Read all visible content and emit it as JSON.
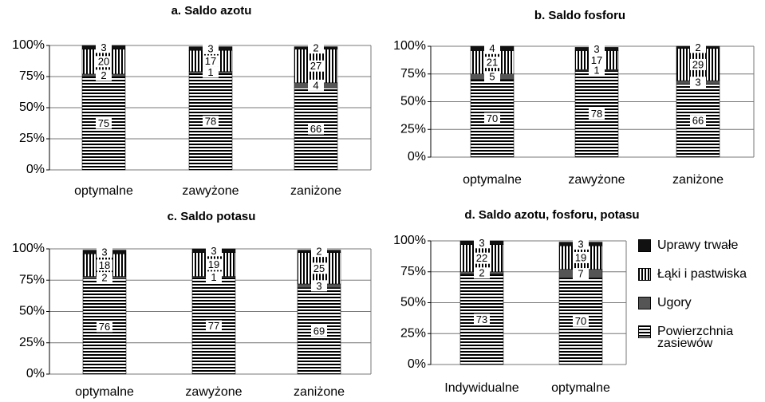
{
  "chart_data": [
    {
      "type": "bar",
      "stacked": true,
      "title": "a. Saldo azotu",
      "categories": [
        "optymalne",
        "zawyżone",
        "zaniżone"
      ],
      "series": [
        {
          "color": "#000000",
          "hatch": "horizontal",
          "values": [
            75,
            78,
            66
          ]
        },
        {
          "color": "#555555",
          "hatch": null,
          "values": [
            2,
            1,
            4
          ]
        },
        {
          "color": "#000000",
          "hatch": "vertical",
          "values": [
            20,
            17,
            27
          ]
        },
        {
          "color": "#111111",
          "hatch": null,
          "values": [
            3,
            3,
            2
          ]
        }
      ],
      "ylim": [
        0,
        100
      ],
      "yticks": [
        {
          "value": 0,
          "label": "0%"
        },
        {
          "value": 25,
          "label": "25%"
        },
        {
          "value": 50,
          "label": "50%"
        },
        {
          "value": 75,
          "label": "75%"
        },
        {
          "value": 100,
          "label": "100%"
        }
      ],
      "grid": true
    },
    {
      "type": "bar",
      "stacked": true,
      "title": "b. Saldo fosforu",
      "categories": [
        "optymalne",
        "zawyżone",
        "zaniżone"
      ],
      "series": [
        {
          "color": "#000000",
          "hatch": "horizontal",
          "values": [
            70,
            78,
            66
          ]
        },
        {
          "color": "#555555",
          "hatch": null,
          "values": [
            5,
            1,
            3
          ]
        },
        {
          "color": "#000000",
          "hatch": "vertical",
          "values": [
            21,
            17,
            29
          ]
        },
        {
          "color": "#111111",
          "hatch": null,
          "values": [
            4,
            3,
            2
          ]
        }
      ],
      "ylim": [
        0,
        100
      ],
      "yticks": [
        {
          "value": 0,
          "label": "0%"
        },
        {
          "value": 25,
          "label": "25%"
        },
        {
          "value": 50,
          "label": "50%"
        },
        {
          "value": 75,
          "label": "75%"
        },
        {
          "value": 100,
          "label": "100%"
        }
      ],
      "grid": true
    },
    {
      "type": "bar",
      "stacked": true,
      "title": "c. Saldo potasu",
      "categories": [
        "optymalne",
        "zawyżone",
        "zaniżone"
      ],
      "series": [
        {
          "color": "#000000",
          "hatch": "horizontal",
          "values": [
            76,
            77,
            69
          ]
        },
        {
          "color": "#555555",
          "hatch": null,
          "values": [
            2,
            1,
            3
          ]
        },
        {
          "color": "#000000",
          "hatch": "vertical",
          "values": [
            18,
            19,
            25
          ]
        },
        {
          "color": "#111111",
          "hatch": null,
          "values": [
            3,
            3,
            2
          ]
        }
      ],
      "ylim": [
        0,
        100
      ],
      "yticks": [
        {
          "value": 0,
          "label": "0%"
        },
        {
          "value": 25,
          "label": "25%"
        },
        {
          "value": 50,
          "label": "50%"
        },
        {
          "value": 75,
          "label": "75%"
        },
        {
          "value": 100,
          "label": "100%"
        }
      ],
      "grid": true
    },
    {
      "type": "bar",
      "stacked": true,
      "title": "d. Saldo azotu, fosforu, potasu",
      "categories": [
        "Indywidualne",
        "optymalne"
      ],
      "series": [
        {
          "name": "Powierzchnia zasiewów",
          "color": "#000000",
          "hatch": "horizontal",
          "values": [
            73,
            70
          ]
        },
        {
          "name": "Ugory",
          "color": "#555555",
          "hatch": null,
          "values": [
            2,
            7
          ]
        },
        {
          "name": "Łąki i pastwiska",
          "color": "#000000",
          "hatch": "vertical",
          "values": [
            22,
            19
          ]
        },
        {
          "name": "Uprawy trwałe",
          "color": "#111111",
          "hatch": null,
          "values": [
            3,
            3
          ]
        }
      ],
      "ylim": [
        0,
        100
      ],
      "yticks": [
        {
          "value": 0,
          "label": "0%"
        },
        {
          "value": 25,
          "label": "25%"
        },
        {
          "value": 50,
          "label": "50%"
        },
        {
          "value": 75,
          "label": "75%"
        },
        {
          "value": 100,
          "label": "100%"
        }
      ],
      "grid": true,
      "legend": "right"
    }
  ]
}
